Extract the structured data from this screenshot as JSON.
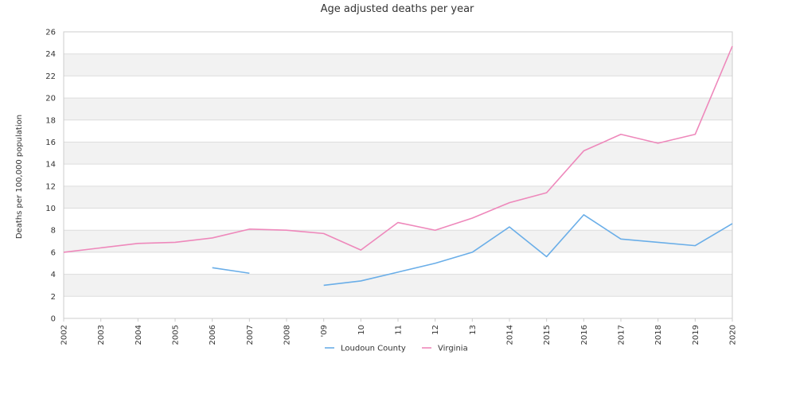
{
  "chart_data": {
    "type": "line",
    "title": "Age adjusted deaths per year",
    "xlabel": "",
    "ylabel": "Deaths per 100,000 population",
    "ylim": [
      0,
      26
    ],
    "yticks": [
      0,
      2,
      4,
      6,
      8,
      10,
      12,
      14,
      16,
      18,
      20,
      22,
      24,
      26
    ],
    "x": [
      "2002",
      "2003",
      "2004",
      "2005",
      "2006",
      "2007",
      "2008",
      "2009",
      "2010",
      "2011",
      "2012",
      "2013",
      "2014",
      "2015",
      "2016",
      "2017",
      "2018",
      "2019",
      "2020"
    ],
    "x_tick_labels": [
      "2002",
      "2003",
      "2004",
      "2005",
      "2006",
      "2007",
      "2008",
      "'09",
      "10",
      "11",
      "12",
      "13",
      "2014",
      "2015",
      "2016",
      "2017",
      "2018",
      "2019",
      "2020"
    ],
    "grid": "horizontal bands",
    "legend_position": "bottom",
    "series": [
      {
        "name": "Loudoun County",
        "color": "#6aaee8",
        "values": [
          null,
          null,
          null,
          null,
          4.6,
          4.1,
          null,
          3.0,
          3.4,
          4.2,
          5.0,
          6.0,
          8.3,
          5.6,
          9.4,
          7.2,
          6.9,
          6.6,
          8.6
        ]
      },
      {
        "name": "Virginia",
        "color": "#ee88bb",
        "values": [
          6.0,
          6.4,
          6.8,
          6.9,
          7.3,
          8.1,
          8.0,
          7.7,
          6.2,
          8.7,
          8.0,
          9.1,
          10.5,
          11.4,
          15.2,
          16.7,
          15.9,
          16.7,
          24.7
        ]
      }
    ]
  }
}
